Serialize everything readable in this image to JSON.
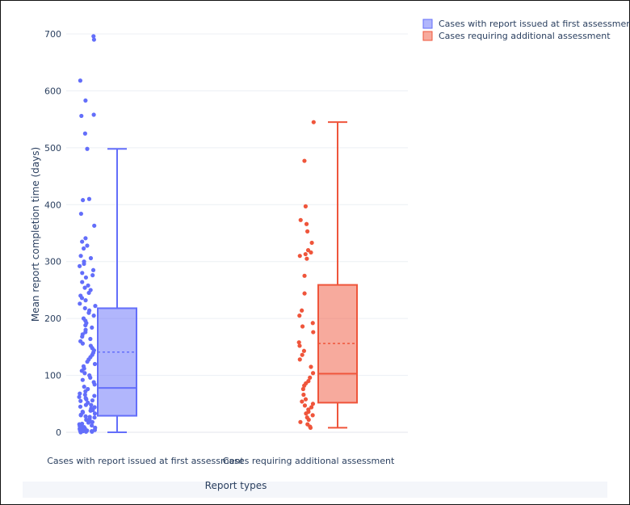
{
  "chart_data": {
    "type": "box",
    "title": "",
    "xlabel": "Report types",
    "ylabel": "Mean report completion time (days)",
    "ylim": [
      0,
      700
    ],
    "yticks": [
      0,
      100,
      200,
      300,
      400,
      500,
      600,
      700
    ],
    "grid": true,
    "legend_position": "top-right",
    "series": [
      {
        "name": "Cases with report issued at first assessment",
        "category": "Cases with report issued at first assessment",
        "color": "#636efa",
        "min": 0,
        "q1": 29,
        "median": 78,
        "mean": 141,
        "q3": 218,
        "max": 498,
        "points": [
          696,
          690,
          618,
          583,
          558,
          556,
          525,
          498,
          410,
          408,
          384,
          363,
          341,
          335,
          328,
          323,
          310,
          306,
          300,
          296,
          292,
          285,
          280,
          276,
          272,
          264,
          258,
          254,
          250,
          245,
          240,
          236,
          232,
          226,
          222,
          218,
          214,
          210,
          205,
          200,
          196,
          192,
          188,
          184,
          180,
          176,
          172,
          168,
          164,
          160,
          156,
          152,
          148,
          144,
          140,
          136,
          132,
          128,
          124,
          120,
          116,
          112,
          108,
          104,
          100,
          96,
          92,
          88,
          84,
          80,
          76,
          72,
          68,
          64,
          60,
          56,
          52,
          48,
          45,
          42,
          39,
          36,
          33,
          30,
          27,
          24,
          21,
          18,
          15,
          12,
          10,
          8,
          6,
          4,
          3,
          2,
          1,
          0,
          58,
          62,
          35,
          22,
          14,
          9,
          5,
          2,
          48,
          55,
          31,
          26,
          17,
          11,
          7,
          3,
          1,
          66,
          44,
          38,
          28,
          19
        ]
      },
      {
        "name": "Cases requiring additional assessment",
        "category": "Cases requiring additional assessment",
        "color": "#ef553b",
        "min": 8,
        "q1": 52,
        "median": 103,
        "mean": 156,
        "q3": 259,
        "max": 545,
        "points": [
          545,
          477,
          397,
          373,
          366,
          353,
          333,
          320,
          316,
          313,
          310,
          305,
          275,
          244,
          214,
          205,
          192,
          186,
          176,
          158,
          152,
          143,
          136,
          128,
          115,
          104,
          96,
          90,
          86,
          82,
          76,
          66,
          58,
          54,
          50,
          47,
          44,
          40,
          36,
          33,
          30,
          26,
          22,
          18,
          14,
          10,
          8
        ]
      }
    ]
  }
}
